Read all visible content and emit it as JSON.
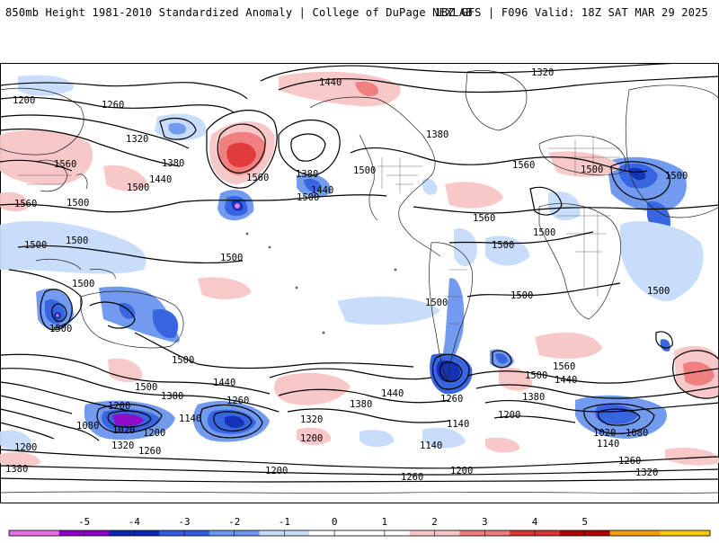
{
  "header": {
    "title_left": "850mb Height 1981-2010 Standardized Anomaly | College of DuPage NEXLAB",
    "title_right": "18Z GFS | F096 Valid: 18Z SAT MAR 29 2025"
  },
  "map": {
    "contour_labels": [
      "1320",
      "1320",
      "1200",
      "1260",
      "1440",
      "1380",
      "1320",
      "1560",
      "1380",
      "1440",
      "1500",
      "1560",
      "1500",
      "1560",
      "1380",
      "1440",
      "1500",
      "1560",
      "1500",
      "1500",
      "1500",
      "1500",
      "1560",
      "1500",
      "1500",
      "1500",
      "1500",
      "1500",
      "1500",
      "1500",
      "1500",
      "1500",
      "1440",
      "1500",
      "1380",
      "1440",
      "1380",
      "1260",
      "1200",
      "1140",
      "1080",
      "1020",
      "1200",
      "1260",
      "1320",
      "1320",
      "1200",
      "1380",
      "1440",
      "1500",
      "1560",
      "1140",
      "1200",
      "1260",
      "1200",
      "1140",
      "1020",
      "1080",
      "1140",
      "1200",
      "1260",
      "1320",
      "1380",
      "1500",
      "1260",
      "1200"
    ],
    "highlight_colors": {
      "negative": "#3060d8",
      "positive": "#f07070"
    }
  },
  "colorbar": {
    "ticks": [
      "-5",
      "-4",
      "-3",
      "-2",
      "-1",
      "0",
      "1",
      "2",
      "3",
      "4",
      "5"
    ],
    "colors": [
      "#e66fe6",
      "#8b00c8",
      "#0a28b4",
      "#2e5ee0",
      "#6b96f0",
      "#c6dcfa",
      "#ffffff",
      "#ffffff",
      "#f8c6c6",
      "#f07a7a",
      "#e03232",
      "#b40000",
      "#f0a000",
      "#f8c800"
    ]
  }
}
